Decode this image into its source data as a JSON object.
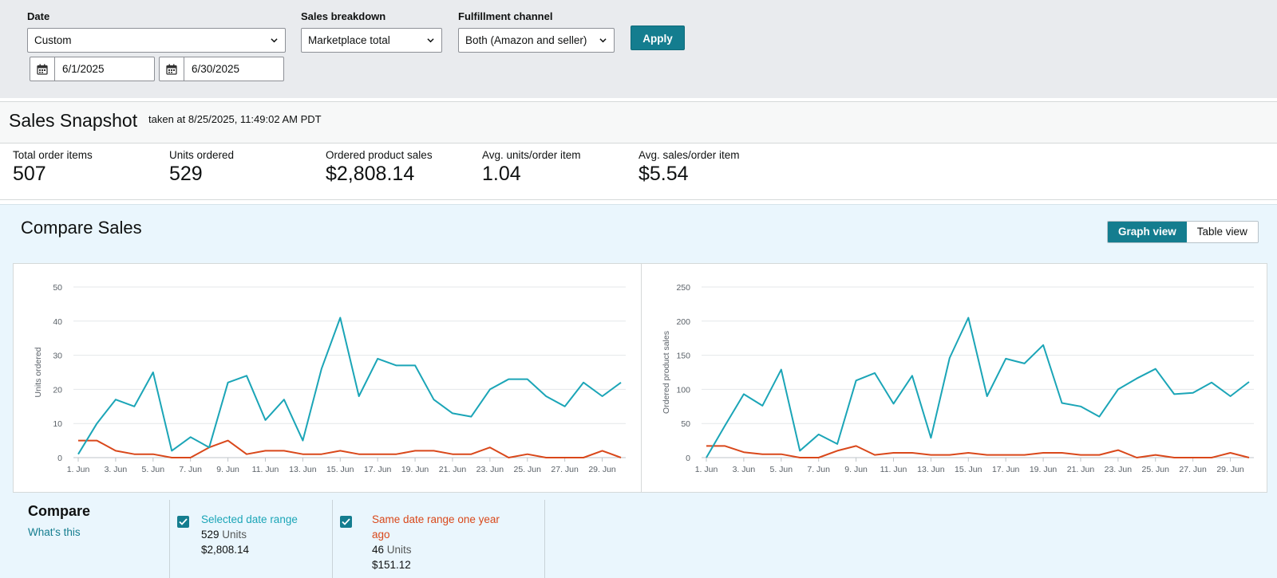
{
  "filters": {
    "date": {
      "label": "Date",
      "value": "Custom",
      "start": "6/1/2025",
      "end": "6/30/2025"
    },
    "breakdown": {
      "label": "Sales breakdown",
      "value": "Marketplace total"
    },
    "channel": {
      "label": "Fulfillment channel",
      "value": "Both (Amazon and seller)"
    },
    "apply_label": "Apply"
  },
  "snapshot": {
    "title": "Sales Snapshot",
    "taken": "taken at 8/25/2025, 11:49:02 AM PDT",
    "metrics": [
      {
        "label": "Total order items",
        "value": "507"
      },
      {
        "label": "Units ordered",
        "value": "529"
      },
      {
        "label": "Ordered product sales",
        "value": "$2,808.14"
      },
      {
        "label": "Avg. units/order item",
        "value": "1.04"
      },
      {
        "label": "Avg. sales/order item",
        "value": "$5.54"
      }
    ]
  },
  "compare": {
    "title": "Compare Sales",
    "graph_view": "Graph view",
    "table_view": "Table view",
    "heading": "Compare",
    "whats_this": "What's this",
    "selected": {
      "name": "Selected date range",
      "units_value": "529",
      "units_word": "Units",
      "sales": "$2,808.14",
      "color": "#1ba5b7"
    },
    "previous": {
      "name_line1": "Same date range one year",
      "name_line2": "ago",
      "units_value": "46",
      "units_word": "Units",
      "sales": "$151.12",
      "color": "#d9481b"
    }
  },
  "chart_data": [
    {
      "type": "line",
      "ylabel": "Units ordered",
      "xlabel": "",
      "ylim": [
        0,
        50
      ],
      "yticks": [
        "0",
        "10",
        "20",
        "30",
        "40",
        "50"
      ],
      "x_tick_labels": [
        "1. Jun",
        "3. Jun",
        "5. Jun",
        "7. Jun",
        "9. Jun",
        "11. Jun",
        "13. Jun",
        "15. Jun",
        "17. Jun",
        "19. Jun",
        "21. Jun",
        "23. Jun",
        "25. Jun",
        "27. Jun",
        "29. Jun"
      ],
      "grid": true,
      "series": [
        {
          "name": "Selected date range",
          "color": "#1ba5b7",
          "values": [
            1,
            10,
            17,
            15,
            25,
            2,
            6,
            3,
            22,
            24,
            11,
            17,
            5,
            26,
            41,
            18,
            29,
            27,
            27,
            17,
            13,
            12,
            20,
            23,
            23,
            18,
            15,
            22,
            18,
            22
          ]
        },
        {
          "name": "Same date range one year ago",
          "color": "#d9481b",
          "values": [
            5,
            5,
            2,
            1,
            1,
            0,
            0,
            3,
            5,
            1,
            2,
            2,
            1,
            1,
            2,
            1,
            1,
            1,
            2,
            2,
            1,
            1,
            3,
            0,
            1,
            0,
            0,
            0,
            2,
            0
          ]
        }
      ]
    },
    {
      "type": "line",
      "ylabel": "Ordered product sales",
      "xlabel": "",
      "ylim": [
        0,
        250
      ],
      "yticks": [
        "0",
        "50",
        "100",
        "150",
        "200",
        "250"
      ],
      "x_tick_labels": [
        "1. Jun",
        "3. Jun",
        "5. Jun",
        "7. Jun",
        "9. Jun",
        "11. Jun",
        "13. Jun",
        "15. Jun",
        "17. Jun",
        "19. Jun",
        "21. Jun",
        "23. Jun",
        "25. Jun",
        "27. Jun",
        "29. Jun"
      ],
      "grid": true,
      "series": [
        {
          "name": "Selected date range",
          "color": "#1ba5b7",
          "values": [
            0,
            47,
            93,
            76,
            129,
            10,
            34,
            20,
            113,
            124,
            79,
            120,
            29,
            146,
            205,
            90,
            145,
            138,
            165,
            80,
            75,
            60,
            100,
            116,
            130,
            93,
            95,
            110,
            90,
            111
          ]
        },
        {
          "name": "Same date range one year ago",
          "color": "#d9481b",
          "values": [
            17,
            17,
            8,
            5,
            5,
            0,
            0,
            10,
            17,
            4,
            7,
            7,
            4,
            4,
            7,
            4,
            4,
            4,
            7,
            7,
            4,
            4,
            11,
            0,
            4,
            0,
            0,
            0,
            7,
            0
          ]
        }
      ]
    }
  ]
}
